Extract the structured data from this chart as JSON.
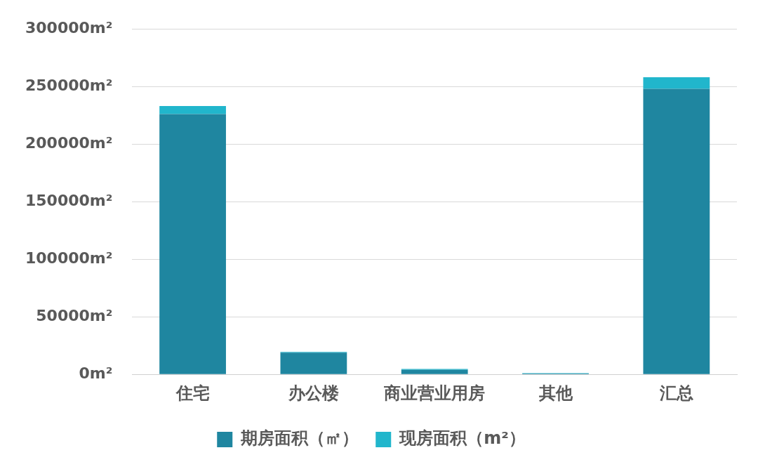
{
  "chart_data": {
    "type": "bar",
    "stacked": true,
    "categories": [
      "住宅",
      "办公楼",
      "商业营业用房",
      "其他",
      "汇总"
    ],
    "series": [
      {
        "name": "期房面积（㎡）",
        "color": "#1f86a0",
        "values": [
          226000,
          18800,
          4000,
          800,
          248000
        ]
      },
      {
        "name": "现房面积（m²）",
        "color": "#21b6cc",
        "values": [
          7000,
          700,
          700,
          300,
          10000
        ]
      }
    ],
    "ylim": [
      0,
      300000
    ],
    "yticks": [
      {
        "value": 0,
        "label": "0m²"
      },
      {
        "value": 50000,
        "label": "50000m²"
      },
      {
        "value": 100000,
        "label": "100000m²"
      },
      {
        "value": 150000,
        "label": "150000m²"
      },
      {
        "value": 200000,
        "label": "200000m²"
      },
      {
        "value": 250000,
        "label": "250000m²"
      },
      {
        "value": 300000,
        "label": "300000m²"
      }
    ],
    "grid": "y",
    "legend": "bottom"
  }
}
